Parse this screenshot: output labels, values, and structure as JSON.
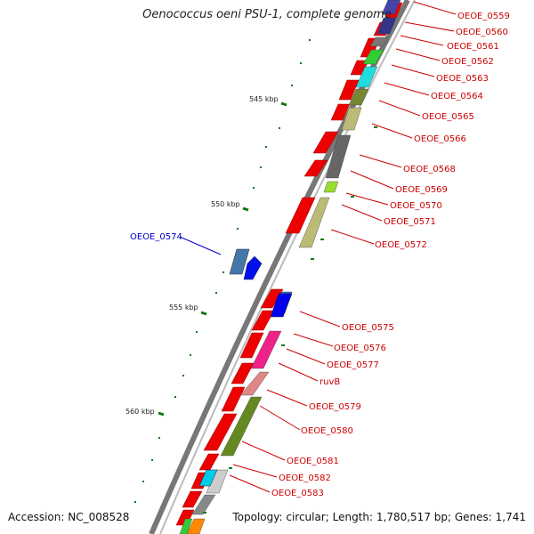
{
  "title": "Oenococcus oeni PSU-1, complete genome",
  "footer": {
    "accession": "Accession: NC_008528",
    "summary": "Topology: circular; Length: 1,780,517 bp; Genes: 1,741"
  },
  "scale_labels": [
    "545 kbp",
    "550 kbp",
    "555 kbp",
    "560 kbp"
  ],
  "genes": [
    {
      "name": "OEOE_0559",
      "color": "#cc0000"
    },
    {
      "name": "OEOE_0560",
      "color": "#cc0000"
    },
    {
      "name": "OEOE_0561",
      "color": "#cc0000"
    },
    {
      "name": "OEOE_0562",
      "color": "#cc0000"
    },
    {
      "name": "OEOE_0563",
      "color": "#cc0000"
    },
    {
      "name": "OEOE_0564",
      "color": "#cc0000"
    },
    {
      "name": "OEOE_0565",
      "color": "#cc0000"
    },
    {
      "name": "OEOE_0566",
      "color": "#cc0000"
    },
    {
      "name": "OEOE_0568",
      "color": "#cc0000"
    },
    {
      "name": "OEOE_0569",
      "color": "#cc0000"
    },
    {
      "name": "OEOE_0570",
      "color": "#cc0000"
    },
    {
      "name": "OEOE_0571",
      "color": "#cc0000"
    },
    {
      "name": "OEOE_0572",
      "color": "#cc0000"
    },
    {
      "name": "OEOE_0574",
      "color": "#0000cc"
    },
    {
      "name": "OEOE_0575",
      "color": "#cc0000"
    },
    {
      "name": "OEOE_0576",
      "color": "#cc0000"
    },
    {
      "name": "OEOE_0577",
      "color": "#cc0000"
    },
    {
      "name": "ruvB",
      "color": "#cc0000"
    },
    {
      "name": "OEOE_0579",
      "color": "#cc0000"
    },
    {
      "name": "OEOE_0580",
      "color": "#cc0000"
    },
    {
      "name": "OEOE_0581",
      "color": "#cc0000"
    },
    {
      "name": "OEOE_0582",
      "color": "#cc0000"
    },
    {
      "name": "OEOE_0583",
      "color": "#cc0000"
    }
  ]
}
